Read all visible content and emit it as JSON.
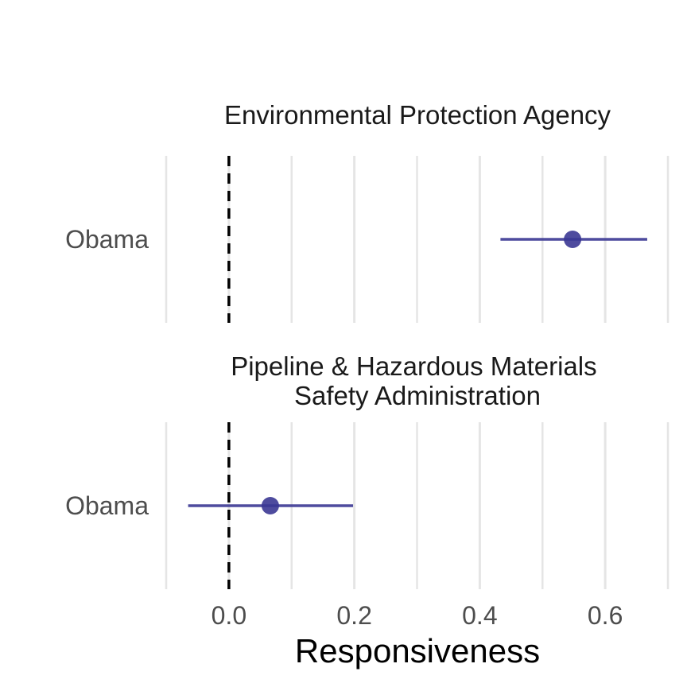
{
  "chart_data": {
    "type": "scatter",
    "subtype": "dot-and-whisker (faceted)",
    "xlabel": "Responsiveness",
    "xlim": [
      -0.1,
      0.7
    ],
    "x_ticks": [
      0.0,
      0.2,
      0.4,
      0.6
    ],
    "x_tick_labels": [
      "0.0",
      "0.2",
      "0.4",
      "0.6"
    ],
    "reference_line": {
      "x": 0.0,
      "style": "dashed",
      "color": "#000000"
    },
    "grid": true,
    "colors": {
      "estimate": "#3b3793",
      "grid": "#e5e5e5",
      "reference": "#000000"
    },
    "panels": [
      {
        "title_lines": [
          "Environmental Protection Agency"
        ],
        "rows": [
          {
            "label": "Obama",
            "estimate": 0.548,
            "ci_low": 0.433,
            "ci_high": 0.667
          }
        ]
      },
      {
        "title_lines": [
          "Pipeline & Hazardous Materials",
          "Safety Administration"
        ],
        "rows": [
          {
            "label": "Obama",
            "estimate": 0.066,
            "ci_low": -0.065,
            "ci_high": 0.198
          }
        ]
      }
    ]
  }
}
